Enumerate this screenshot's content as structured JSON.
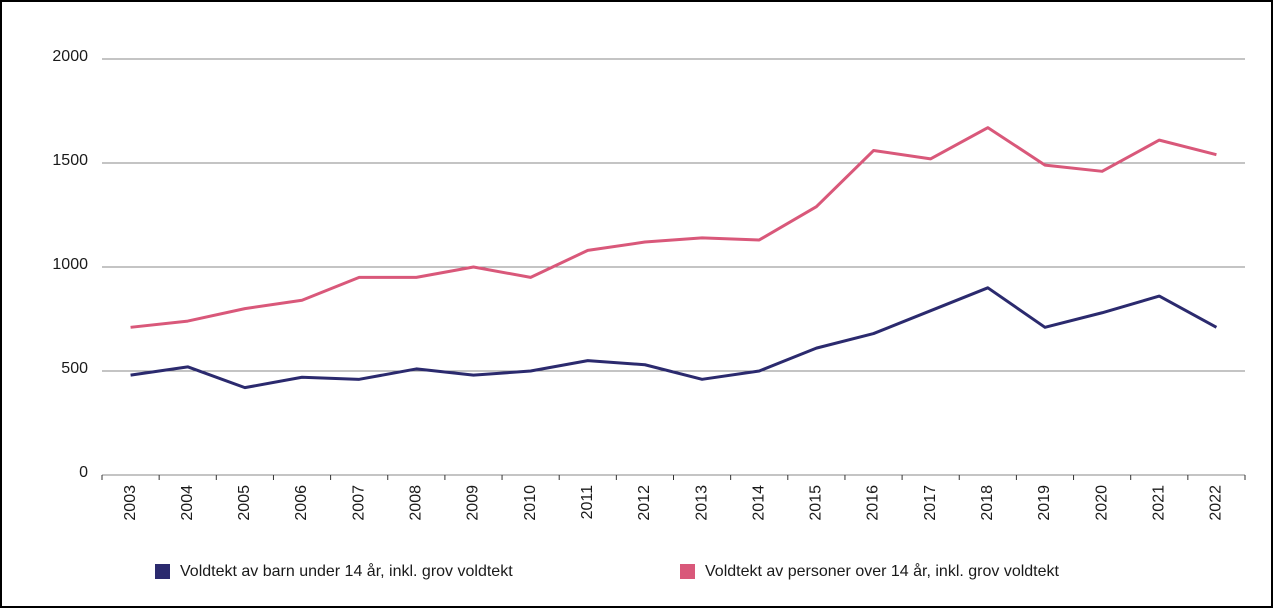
{
  "chart_data": {
    "type": "line",
    "categories": [
      "2003",
      "2004",
      "2005",
      "2006",
      "2007",
      "2008",
      "2009",
      "2010",
      "2011",
      "2012",
      "2013",
      "2014",
      "2015",
      "2016",
      "2017",
      "2018",
      "2019",
      "2020",
      "2021",
      "2022"
    ],
    "series": [
      {
        "name": "Voldtekt av barn under 14 år, inkl. grov voldtekt",
        "color": "#2b2a6e",
        "values": [
          480,
          520,
          420,
          470,
          460,
          510,
          480,
          500,
          550,
          530,
          460,
          500,
          610,
          680,
          790,
          900,
          710,
          780,
          860,
          710
        ]
      },
      {
        "name": "Voldtekt av personer over 14 år, inkl. grov voldtekt",
        "color": "#d9587a",
        "values": [
          710,
          740,
          800,
          840,
          950,
          950,
          1000,
          950,
          1080,
          1120,
          1140,
          1130,
          1290,
          1560,
          1520,
          1670,
          1490,
          1460,
          1610,
          1540
        ]
      }
    ],
    "ylim": [
      0,
      2000
    ],
    "yticks": [
      0,
      500,
      1000,
      1500,
      2000
    ],
    "grid": true,
    "legend": "bottom"
  }
}
